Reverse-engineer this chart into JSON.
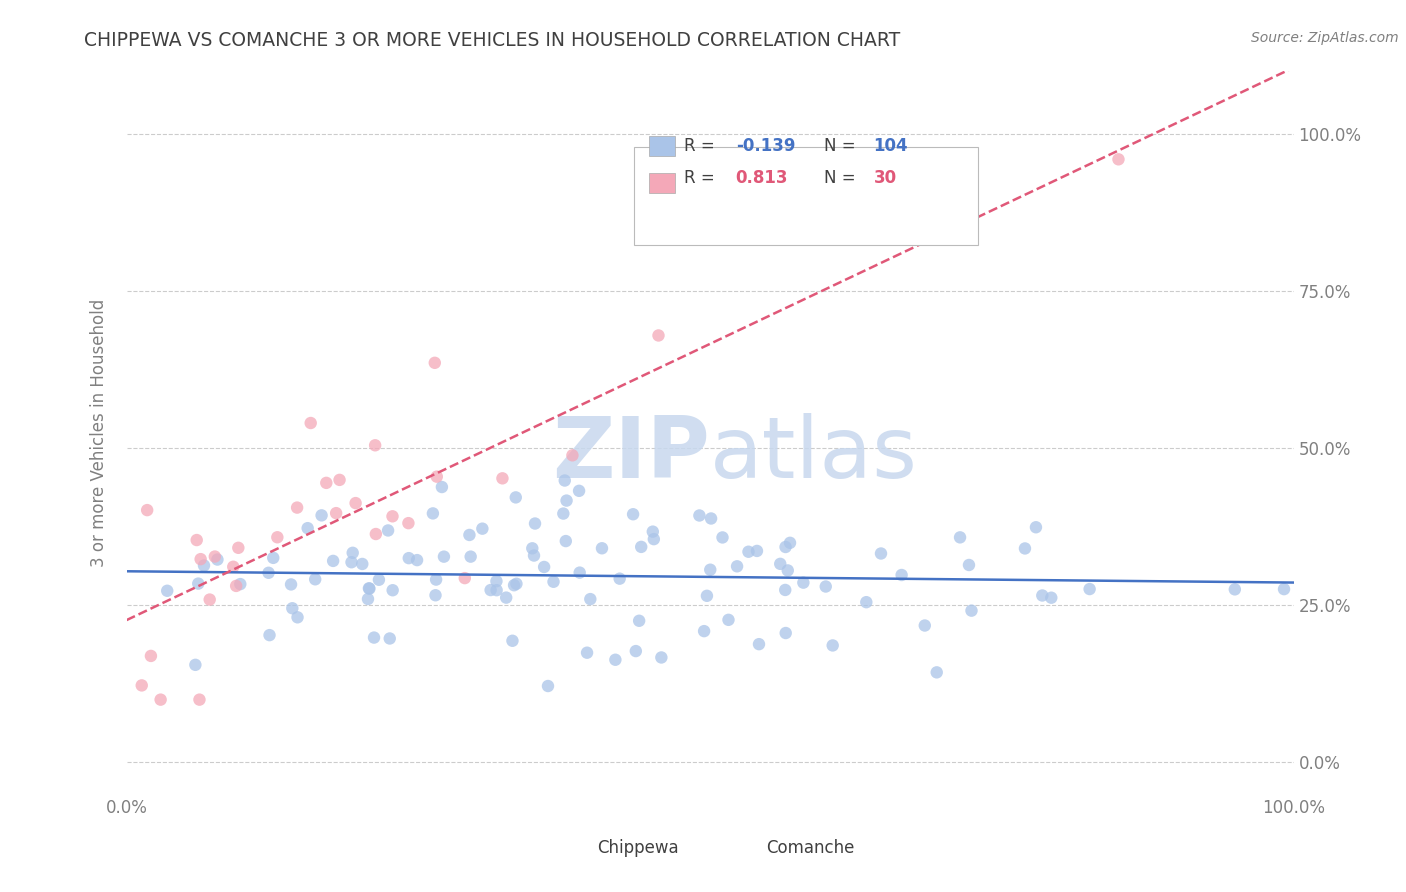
{
  "title": "CHIPPEWA VS COMANCHE 3 OR MORE VEHICLES IN HOUSEHOLD CORRELATION CHART",
  "source": "Source: ZipAtlas.com",
  "ylabel": "3 or more Vehicles in Household",
  "chippewa_color": "#aac4e8",
  "comanche_color": "#f4a8b8",
  "chippewa_line_color": "#4472c4",
  "comanche_line_color": "#e05878",
  "title_color": "#404040",
  "axis_color": "#808080",
  "dot_alpha": 0.75,
  "dot_size": 80,
  "r_chip": -0.139,
  "n_chip": 104,
  "r_com": 0.813,
  "n_com": 30,
  "watermark_color": "#c8d8ee",
  "grid_color": "#cccccc"
}
